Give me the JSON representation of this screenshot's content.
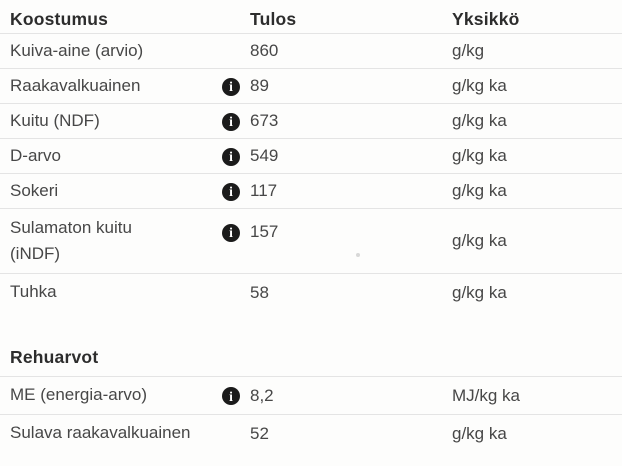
{
  "colors": {
    "background": "#fdfdfc",
    "heading_text": "#2d2d2d",
    "body_text": "#474747",
    "divider": "#e4e4e4",
    "info_icon_bg": "#1b1b1b",
    "info_icon_fg": "#ffffff"
  },
  "icons": {
    "info_glyph": "i"
  },
  "sections": [
    {
      "title": "Koostumus",
      "col_result": "Tulos",
      "col_unit": "Yksikkö",
      "rows": [
        {
          "label": "Kuiva-aine (arvio)",
          "has_info": false,
          "value": "860",
          "unit": "g/kg"
        },
        {
          "label": "Raakavalkuainen",
          "has_info": true,
          "value": "89",
          "unit": "g/kg ka"
        },
        {
          "label": "Kuitu (NDF)",
          "has_info": true,
          "value": "673",
          "unit": "g/kg ka"
        },
        {
          "label": "D-arvo",
          "has_info": true,
          "value": "549",
          "unit": "g/kg ka"
        },
        {
          "label": "Sokeri",
          "has_info": true,
          "value": "117",
          "unit": "g/kg ka"
        },
        {
          "label": "Sulamaton kuitu\n(iNDF)",
          "has_info": true,
          "value": "157",
          "unit": "g/kg ka"
        },
        {
          "label": "Tuhka",
          "has_info": false,
          "value": "58",
          "unit": "g/kg ka"
        }
      ]
    },
    {
      "title": "Rehuarvot",
      "rows": [
        {
          "label": "ME (energia-arvo)",
          "has_info": true,
          "value": "8,2",
          "unit": "MJ/kg ka"
        },
        {
          "label": "Sulava raakavalkuainen",
          "has_info": false,
          "value": "52",
          "unit": "g/kg ka"
        }
      ]
    }
  ]
}
